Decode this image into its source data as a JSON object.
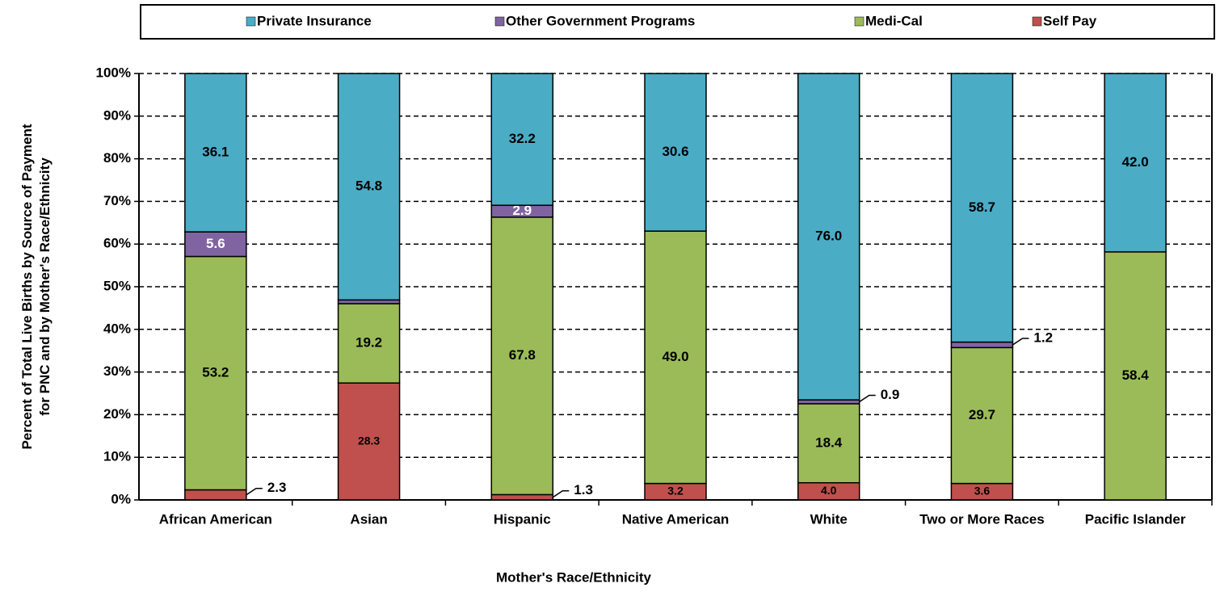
{
  "chart_data": {
    "type": "bar",
    "stack": "percent",
    "x_label": "Mother's Race/Ethnicity",
    "y_label": "Percent of Total Live Births by Source of Payment for PNC and by Mother's Race/Ethnicity",
    "categories": [
      "African American",
      "Asian",
      "Hispanic",
      "Native American",
      "White",
      "Two or More Races",
      "Pacific Islander"
    ],
    "series": [
      {
        "name": "Private Insurance",
        "color": "#4bacc6",
        "values": [
          36.1,
          54.8,
          32.2,
          30.6,
          76.0,
          58.7,
          42.0
        ],
        "value_labels": [
          "36.1",
          "54.8",
          "32.2",
          "30.6",
          "76.0",
          "58.7",
          "42.0"
        ]
      },
      {
        "name": "Other Government Programs",
        "color": "#8064a2",
        "values": [
          5.6,
          0.9,
          2.9,
          0,
          0.9,
          1.2,
          0
        ],
        "value_labels": [
          "5.6",
          null,
          "2.9",
          null,
          "0.9",
          "1.2",
          null
        ]
      },
      {
        "name": "Medi-Cal",
        "color": "#9bbb59",
        "values": [
          53.2,
          19.2,
          67.8,
          49.0,
          18.4,
          29.7,
          58.4
        ],
        "value_labels": [
          "53.2",
          "19.2",
          "67.8",
          "49.0",
          "18.4",
          "29.7",
          "58.4"
        ]
      },
      {
        "name": "Self Pay",
        "color": "#c0504d",
        "values": [
          2.3,
          28.3,
          1.3,
          3.2,
          4.0,
          3.6,
          0
        ],
        "value_labels": [
          "2.3",
          "28.3",
          "1.3",
          "3.2",
          "4.0",
          "3.6",
          null
        ]
      }
    ],
    "ylim": [
      0,
      100
    ],
    "yticks": [
      {
        "value": 0,
        "label": "0%"
      },
      {
        "value": 10,
        "label": "10%"
      },
      {
        "value": 20,
        "label": "20%"
      },
      {
        "value": 30,
        "label": "30%"
      },
      {
        "value": 40,
        "label": "40%"
      },
      {
        "value": 50,
        "label": "50%"
      },
      {
        "value": 60,
        "label": "60%"
      },
      {
        "value": 70,
        "label": "70%"
      },
      {
        "value": 80,
        "label": "80%"
      },
      {
        "value": 90,
        "label": "90%"
      },
      {
        "value": 100,
        "label": "100%"
      }
    ],
    "grid": true,
    "legend": "top"
  }
}
